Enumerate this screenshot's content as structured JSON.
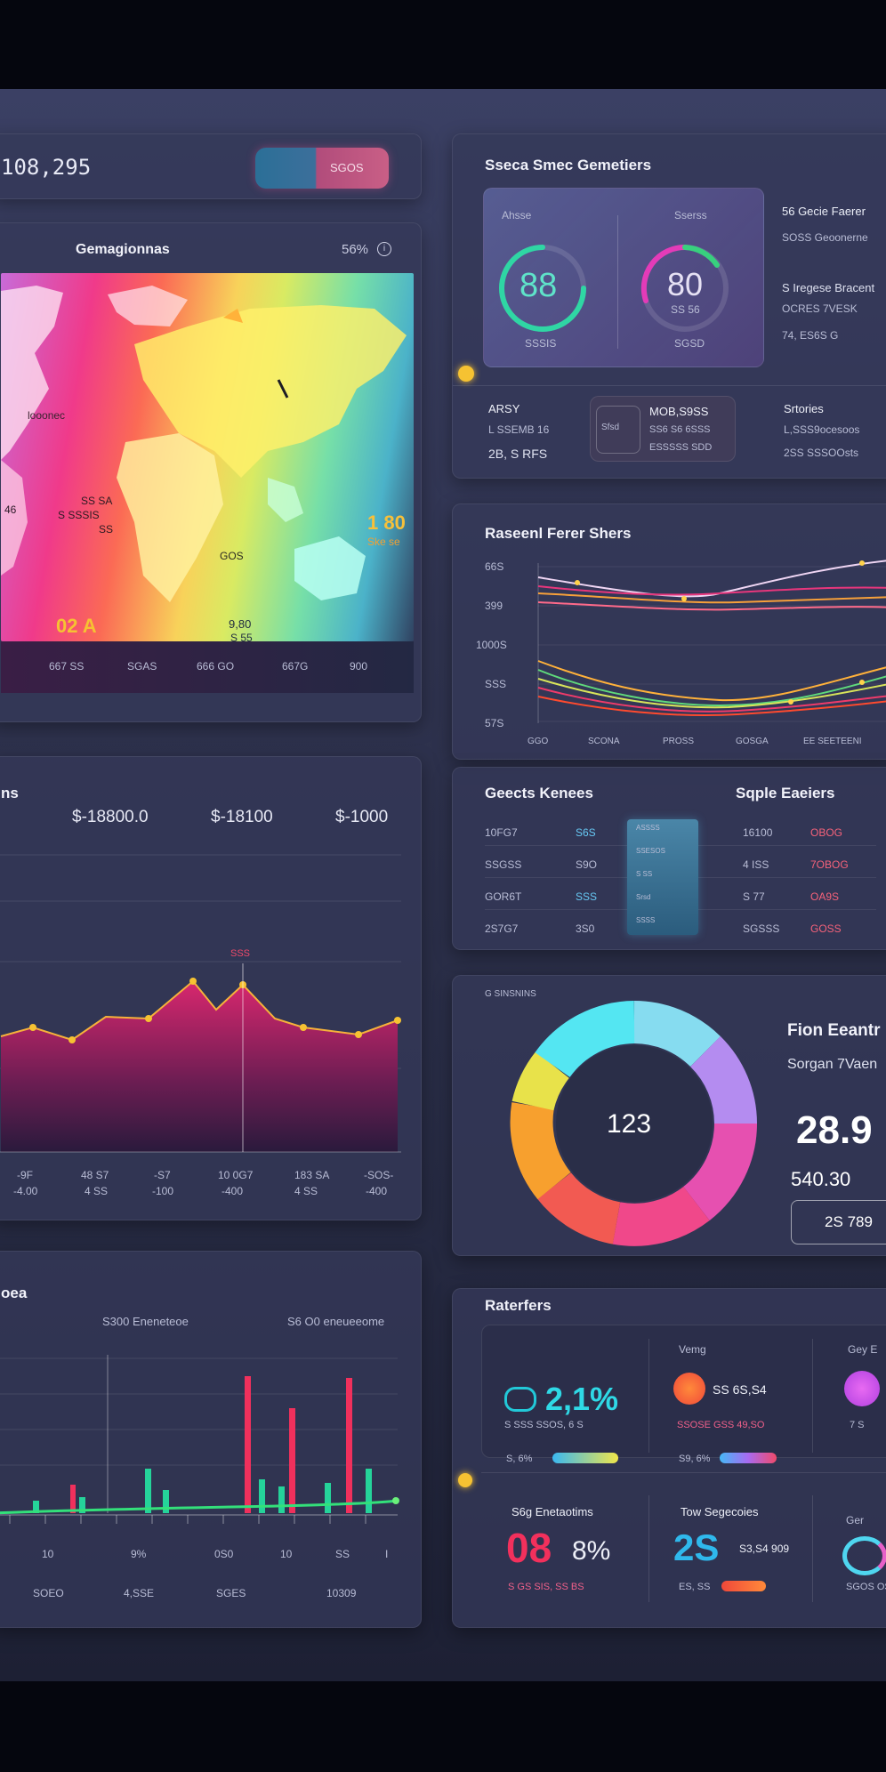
{
  "header": {
    "value": "108,295",
    "toggle_label": "SGOS"
  },
  "map_panel": {
    "title": "Gemagionnas",
    "percent": "56%",
    "info_icon": "info-icon",
    "labels": {
      "la": "looonec",
      "l46": "46",
      "lc1": "SS SA",
      "lc2": "S SSSIS",
      "lc3": "SS",
      "l02": "02 A",
      "l180": "1 80",
      "l180b": "Ske se",
      "lgos": "GOS",
      "l980": "9,80",
      "l980b": "S 55"
    },
    "axis": [
      "667 SS",
      "SGAS",
      "666 GO",
      "667G",
      "900"
    ]
  },
  "top_right": {
    "title": "Sseca Smec Gemetiers",
    "card_left": {
      "label": "Ahsse",
      "value": "88",
      "foot": "SSSIS"
    },
    "card_right": {
      "label": "Sserss",
      "value": "80",
      "sub": "SS 56",
      "foot": "SGSD"
    },
    "side": [
      "56 Gecie Faerer",
      "SOSS Geoonerne",
      "S Iregese Bracent",
      "OCRES 7VESK",
      "74, ES6S G"
    ],
    "row2": {
      "left_title": "ARSY",
      "left_l1": "L SSEMB 16",
      "left_l2": "2B, S RFS",
      "center_title": "MOB,S9SS",
      "center_l1": "SS6 S6 6SSS",
      "center_l2": "ESSSSS   SDD",
      "center_small": "Sfsd",
      "right_title": "Srtories",
      "right_l1": "L,SSS9ocesoos",
      "right_l2": "2SS SSSOOsts"
    }
  },
  "sales_panel": {
    "title": "Raseenl Ferer Shers",
    "ylabels": [
      "66S",
      "399",
      "1000S",
      "SSS",
      "57S"
    ],
    "xlabels": [
      "GGO",
      "SCONA",
      "PROSS",
      "GOSGA",
      "EE SEETEENI"
    ]
  },
  "table_panel": {
    "left_title": "Geects Kenees",
    "right_title": "Sqple Eaeiers",
    "rows": [
      {
        "a": "10FG7",
        "b": "S6S",
        "c": "16100",
        "d": "OBOG"
      },
      {
        "a": "SSGSS",
        "b": "S9O",
        "c": "4 ISS",
        "d": "7OBOG"
      },
      {
        "a": "GOR6T",
        "b": "SSS",
        "c": "S 77",
        "d": "OA9S"
      },
      {
        "a": "2S7G7",
        "b": "3S0",
        "c": "SGSSS",
        "d": "GOSS"
      }
    ],
    "mini_rows": [
      "ASSSS",
      "SSESOS",
      "S SS",
      "Srsd",
      "SSSS"
    ]
  },
  "area_panel": {
    "title": "ns",
    "values": [
      "$-18800.0",
      "$-18100",
      "$-1000"
    ],
    "peak_label": "SSS",
    "xlabels": [
      {
        "a": "-9F",
        "b": "-4.00"
      },
      {
        "a": "48 S7",
        "b": "4 SS"
      },
      {
        "a": "-S7",
        "b": "-100"
      },
      {
        "a": "10 0G7",
        "b": "-400"
      },
      {
        "a": "183 SA",
        "b": "4 SS"
      },
      {
        "a": "-SOS-",
        "b": "-400"
      }
    ]
  },
  "donut_panel": {
    "header": "G SINSNINS",
    "center_value": "123",
    "title": "Fion Eeantr",
    "subtitle": "Sorgan 7Vaen",
    "big_value": "28.9",
    "sub_value": "540.30",
    "button_label": "2S 789"
  },
  "bars_panel": {
    "title": "oea",
    "legend_a": "S300 Eneneteoe",
    "legend_b": "S6 O0 eneueeome",
    "xlabels": [
      "10",
      "9%",
      "0S0",
      "10",
      "SS",
      "I"
    ],
    "xlabels2": [
      "SOEO",
      "4,SSE",
      "SGES",
      "10309"
    ]
  },
  "metrics_panel": {
    "title": "Raterfers",
    "m1": {
      "value": "2,1%",
      "line": "S SSS SSOS, 6 S"
    },
    "m2": {
      "label": "Vemg",
      "value": "SS 6S,S4",
      "line": "SSOSE GSS 49,SO"
    },
    "m3": {
      "label": "Gey E",
      "line": "7 S"
    },
    "p1_label": "S, 6%",
    "p2_label": "S9, 6%",
    "m4": {
      "label": "S6g Enetaotims",
      "value": "08",
      "suffix": "8%",
      "line": "S GS SIS, SS BS"
    },
    "m5": {
      "label": "Tow Segecoies",
      "value": "2S",
      "small": "S3,S4 909",
      "line": "ES, SS"
    },
    "m6": {
      "label": "Ger",
      "line": "SGOS OS"
    }
  },
  "colors": {
    "accent_gold": "#f6c232",
    "accent_pink": "#e9217a",
    "accent_cyan": "#25d3e0",
    "accent_green": "#28d07a"
  }
}
